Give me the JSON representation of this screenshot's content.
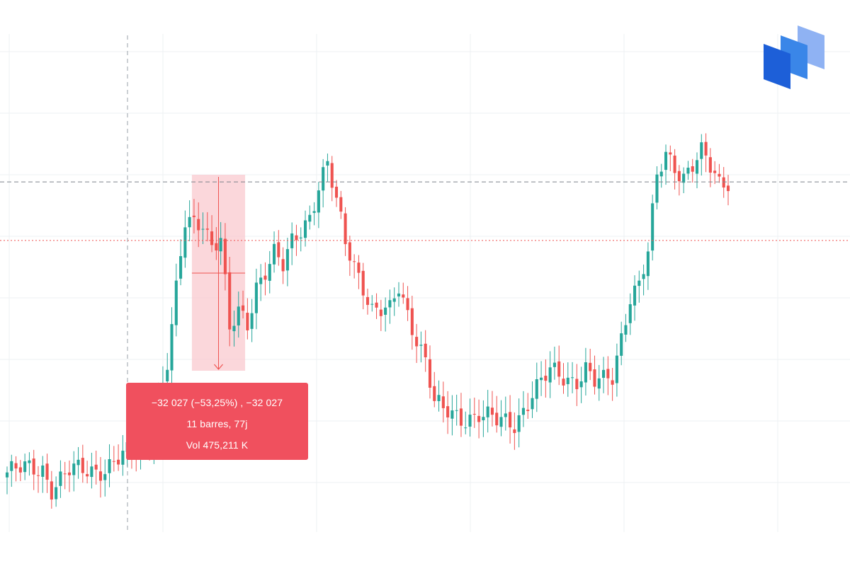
{
  "colors": {
    "up": "#26a69a",
    "down": "#ef5350",
    "grid": "#eef0f3",
    "crosshair": "#9aa0a8",
    "last_price_line": "#ef5350",
    "measure_fill": "#f9c9cf",
    "tooltip_bg": "#f0505e",
    "logo": [
      "#1d5fd8",
      "#3a86e8",
      "#8fb2f3"
    ]
  },
  "measure_tooltip": {
    "line1": "−32 027 (−53,25%) , −32 027",
    "line2": "11 barres, 77j",
    "line3": "Vol 475,211 K"
  },
  "logo": {
    "icon": "brand-logo-icon"
  },
  "chart_data": {
    "type": "candlestick",
    "title": "",
    "xlabel": "",
    "ylabel": "",
    "grid": true,
    "axis_labels_visible": false,
    "ylim": [
      0,
      100
    ],
    "note_units": "relative price level (0 = bottom of plot, 100 = top), no price axis visible",
    "price_path": [
      [
        0,
        12
      ],
      [
        8,
        13
      ],
      [
        10,
        9
      ],
      [
        14,
        12
      ],
      [
        22,
        13
      ],
      [
        28,
        16
      ],
      [
        32,
        18
      ],
      [
        36,
        34
      ],
      [
        40,
        62
      ],
      [
        44,
        63
      ],
      [
        46,
        58
      ],
      [
        48,
        59
      ],
      [
        50,
        40
      ],
      [
        52,
        44
      ],
      [
        54,
        42
      ],
      [
        56,
        50
      ],
      [
        60,
        56
      ],
      [
        62,
        53
      ],
      [
        64,
        58
      ],
      [
        66,
        61
      ],
      [
        68,
        64
      ],
      [
        70,
        70
      ],
      [
        72,
        74
      ],
      [
        76,
        58
      ],
      [
        80,
        50
      ],
      [
        82,
        45
      ],
      [
        86,
        44
      ],
      [
        88,
        49
      ],
      [
        90,
        44
      ],
      [
        94,
        35
      ],
      [
        96,
        26
      ],
      [
        98,
        24
      ],
      [
        102,
        23
      ],
      [
        106,
        24
      ],
      [
        110,
        22
      ],
      [
        114,
        22
      ],
      [
        116,
        25
      ],
      [
        118,
        28
      ],
      [
        122,
        32
      ],
      [
        126,
        31
      ],
      [
        128,
        31
      ],
      [
        130,
        33
      ],
      [
        132,
        30
      ],
      [
        134,
        30
      ],
      [
        136,
        31
      ],
      [
        140,
        48
      ],
      [
        142,
        50
      ],
      [
        144,
        56
      ],
      [
        146,
        71
      ],
      [
        148,
        76
      ],
      [
        150,
        74
      ],
      [
        152,
        72
      ],
      [
        154,
        74
      ],
      [
        156,
        76
      ],
      [
        158,
        73
      ],
      [
        160,
        70
      ],
      [
        162,
        71
      ]
    ],
    "reference_lines": {
      "dashed_high": 70.5,
      "dotted_last": 58.7
    },
    "measure": {
      "from_bar": 42,
      "to_bar": 53,
      "change": "−32 027",
      "percent": "−53,25%",
      "bars": 11,
      "days": 77,
      "volume": "475,211 K"
    }
  }
}
